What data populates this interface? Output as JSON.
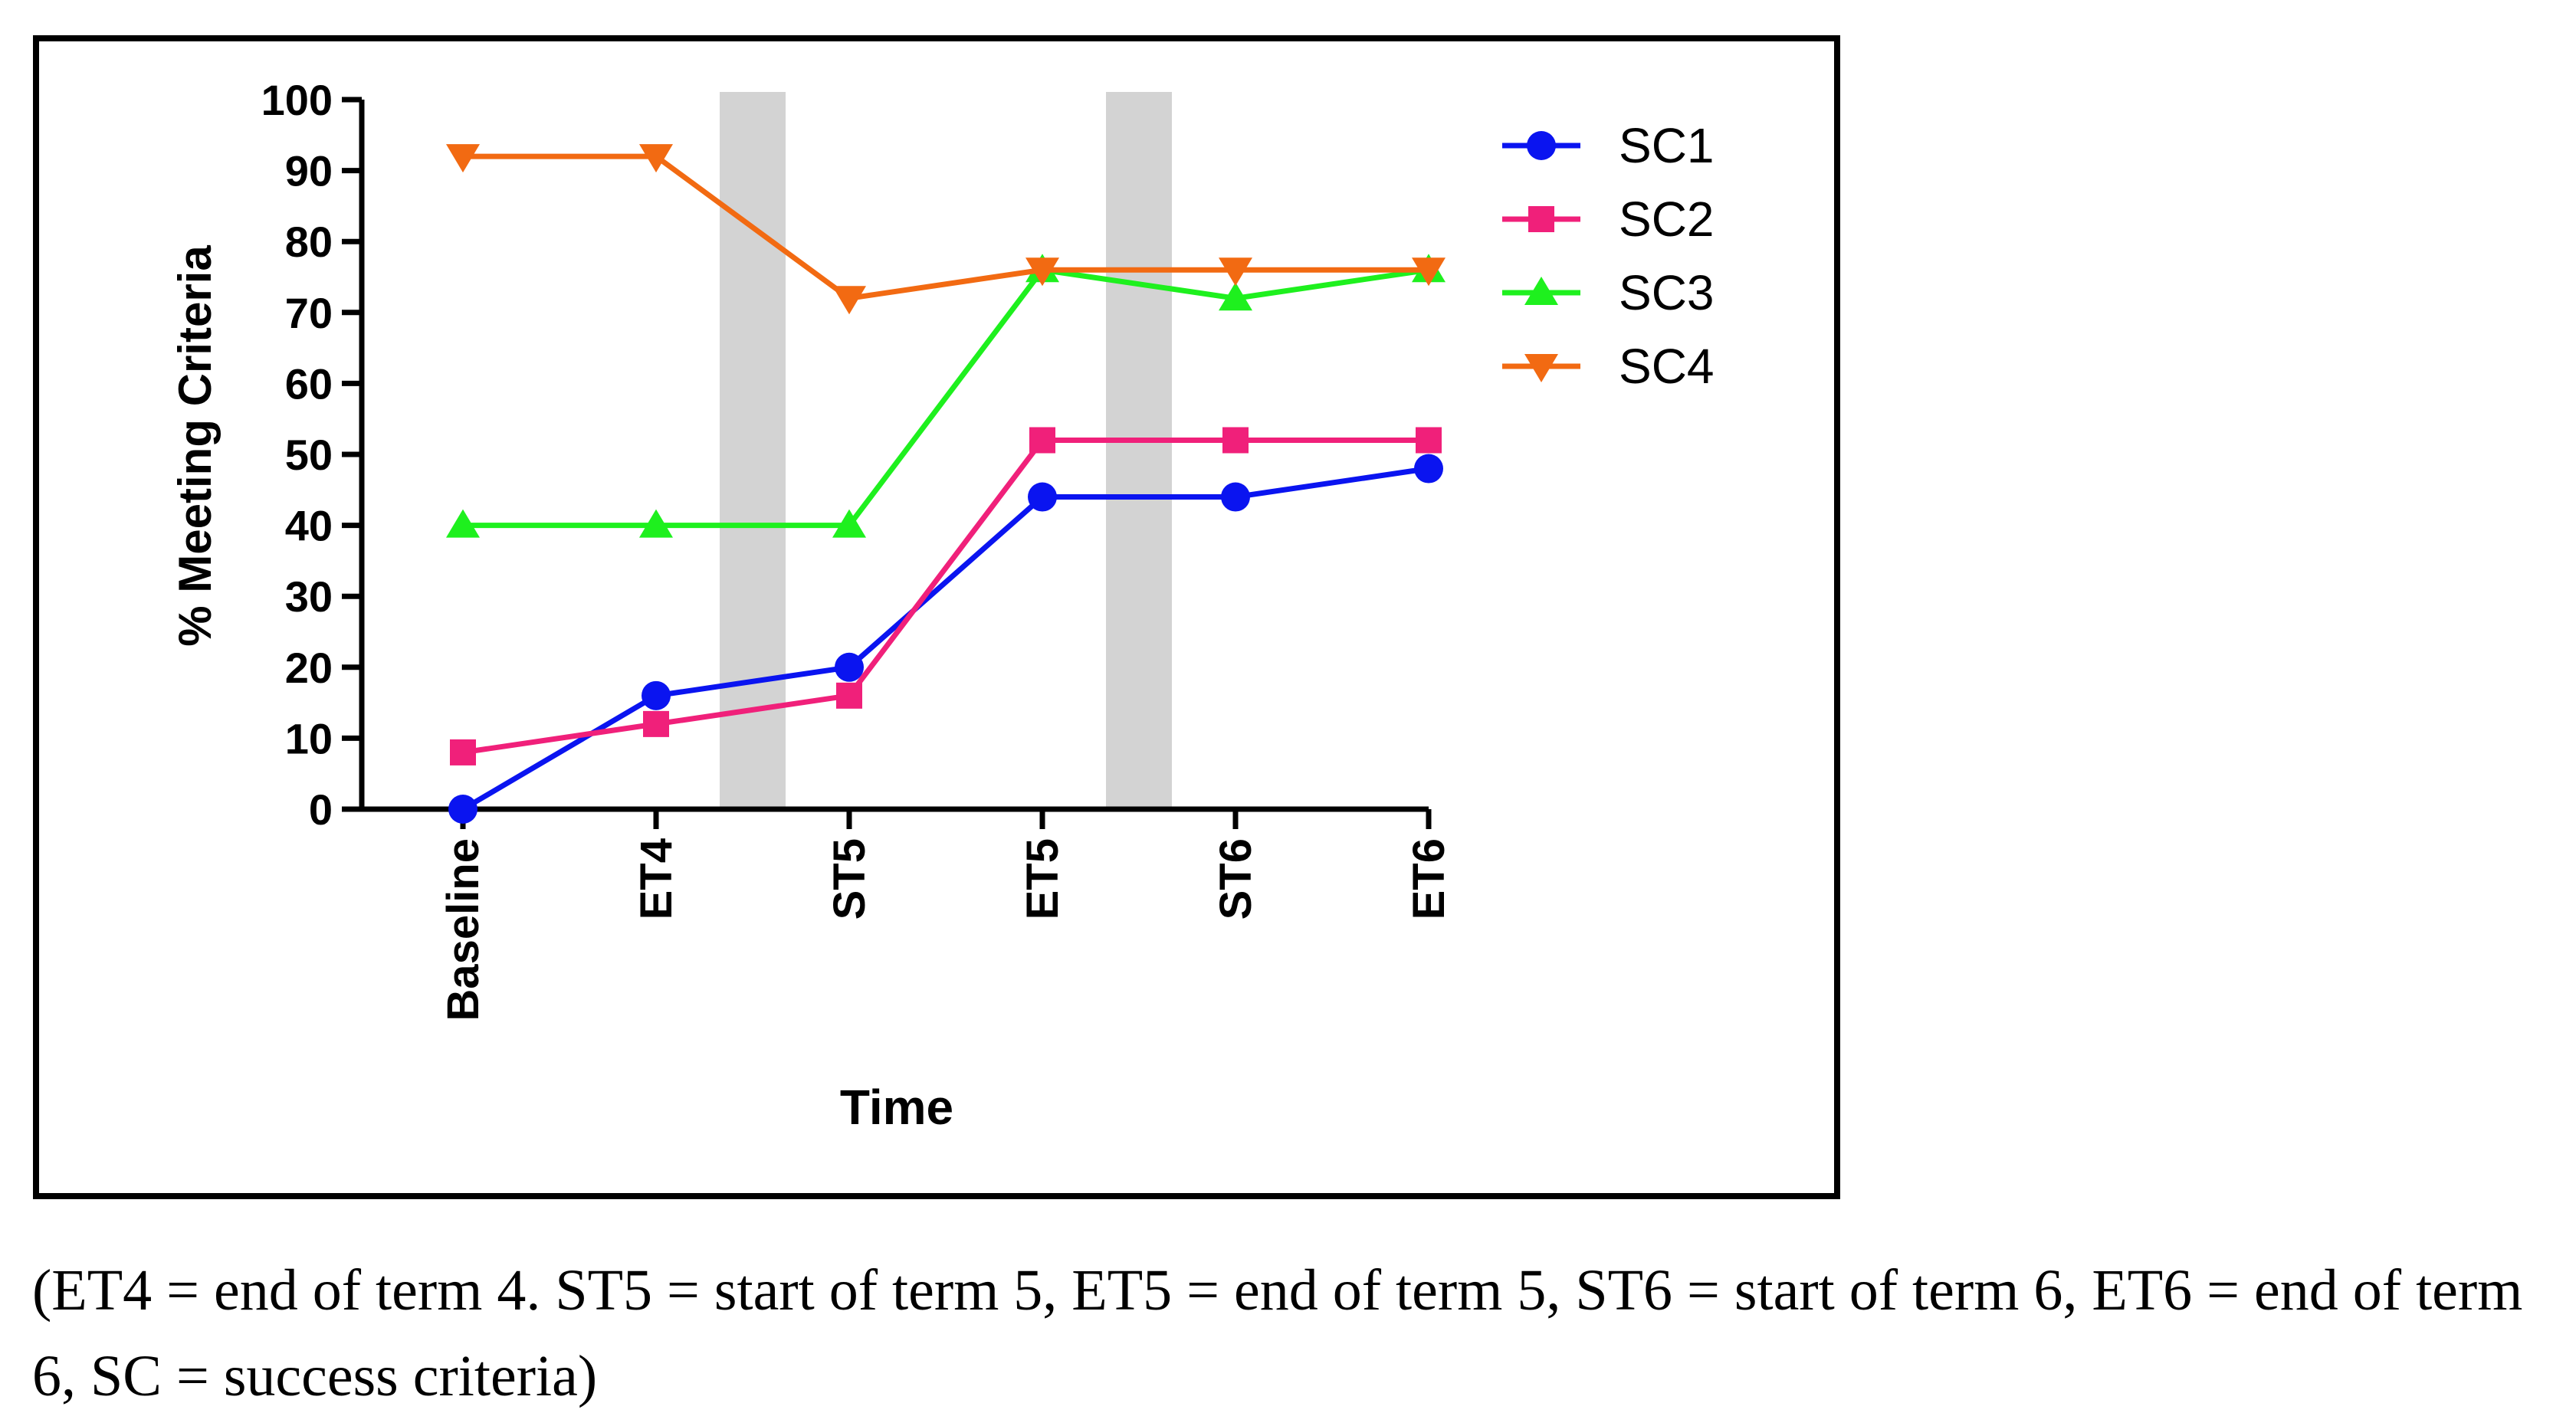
{
  "chart_data": {
    "type": "line",
    "title": "",
    "xlabel": "Time",
    "ylabel": "% Meeting Criteria",
    "categories": [
      "Baseline",
      "ET4",
      "ST5",
      "ET5",
      "ST6",
      "ET6"
    ],
    "ylim": [
      0,
      100
    ],
    "yticks": [
      0,
      10,
      20,
      30,
      40,
      50,
      60,
      70,
      80,
      90,
      100
    ],
    "grid": false,
    "legend_position": "top-right, outside plot area",
    "shaded_intervals": [
      {
        "between": [
          "ET4",
          "ST5"
        ],
        "color": "#d3d3d3"
      },
      {
        "between": [
          "ET5",
          "ST6"
        ],
        "color": "#d3d3d3"
      }
    ],
    "series": [
      {
        "name": "SC1",
        "color": "#0a14f0",
        "marker": "circle",
        "values": [
          0,
          16,
          20,
          44,
          44,
          48
        ]
      },
      {
        "name": "SC2",
        "color": "#f0207a",
        "marker": "square",
        "values": [
          8,
          12,
          16,
          52,
          52,
          52
        ]
      },
      {
        "name": "SC3",
        "color": "#1ef01e",
        "marker": "triangle-up",
        "values": [
          40,
          40,
          40,
          76,
          72,
          76
        ]
      },
      {
        "name": "SC4",
        "color": "#f26a12",
        "marker": "triangle-down",
        "values": [
          92,
          92,
          72,
          76,
          76,
          76
        ]
      }
    ]
  },
  "caption": "(ET4 = end of term 4. ST5 = start of term 5, ET5 = end of term 5, ST6 = start of term 6, ET6 = end of term 6, SC = success criteria)"
}
